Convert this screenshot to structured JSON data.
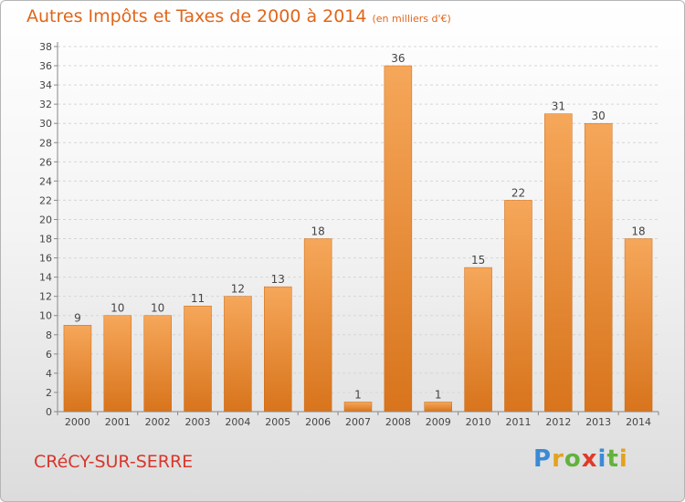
{
  "title": "Autres Impôts et Taxes de 2000 à 2014",
  "subtitle": "(en milliers d'€)",
  "city": "CRéCY-SUR-SERRE",
  "logo": {
    "letters": [
      "P",
      "r",
      "o",
      "x",
      "i",
      "t",
      "i"
    ],
    "colors": [
      "#3a8ad6",
      "#e5a21b",
      "#63b23c",
      "#e03a2a",
      "#3a8ad6",
      "#63b23c",
      "#e5a21b"
    ]
  },
  "colors": {
    "bar_top": "#f6a75a",
    "bar_bottom": "#d8741c",
    "title": "#e0661a",
    "city": "#d8362c"
  },
  "chart_data": {
    "type": "bar",
    "title": "Autres Impôts et Taxes de 2000 à 2014",
    "subtitle": "(en milliers d'€)",
    "categories": [
      "2000",
      "2001",
      "2002",
      "2003",
      "2004",
      "2005",
      "2006",
      "2007",
      "2008",
      "2009",
      "2010",
      "2011",
      "2012",
      "2013",
      "2014"
    ],
    "values": [
      9,
      10,
      10,
      11,
      12,
      13,
      18,
      1,
      36,
      1,
      15,
      22,
      31,
      30,
      18
    ],
    "ylim": [
      0,
      38
    ],
    "yticks": [
      0,
      2,
      4,
      6,
      8,
      10,
      12,
      14,
      16,
      18,
      20,
      22,
      24,
      26,
      28,
      30,
      32,
      34,
      36,
      38
    ],
    "grid": true
  }
}
